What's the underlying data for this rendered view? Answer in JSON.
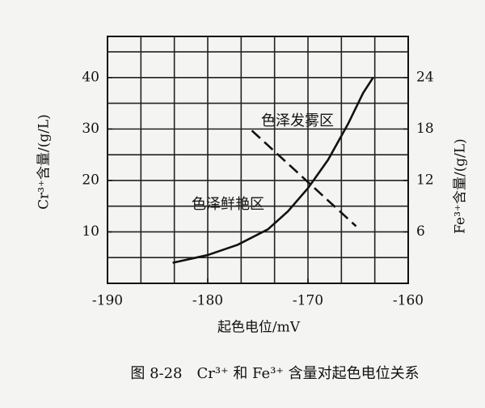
{
  "chart_data": {
    "type": "line",
    "x_label": "起色电位/mV",
    "y_label": "Cr³⁺含量/(g/L)",
    "y2_label": "Fe³⁺含量/(g/L)",
    "caption": "图 8-28　Cr³⁺ 和 Fe³⁺ 含量对起色电位关系",
    "annotations": [
      "色泽发雾区",
      "色泽鲜艳区"
    ],
    "xlim": [
      -190,
      -160
    ],
    "xticks": [
      -190,
      -180,
      -170,
      -160
    ],
    "ylim": [
      0,
      48
    ],
    "yticks": [
      10,
      20,
      30,
      40
    ],
    "y2lim": [
      0,
      28.8
    ],
    "y2ticks": [
      6,
      12,
      18,
      24
    ],
    "grid": true,
    "grid_divisions": {
      "x": 3,
      "y": 2
    },
    "series": [
      {
        "color": "#111111",
        "style": "solid",
        "x": [
          -183.5,
          -180,
          -177,
          -174,
          -172,
          -170,
          -168,
          -166,
          -164.5,
          -163.5
        ],
        "values": [
          4,
          5.5,
          7.5,
          10.5,
          14,
          18.5,
          24,
          31,
          37,
          40
        ]
      },
      {
        "color": "#111111",
        "style": "dashed",
        "x": [
          -175.6,
          -165.2
        ],
        "values": [
          29.7,
          11.1
        ]
      }
    ]
  }
}
